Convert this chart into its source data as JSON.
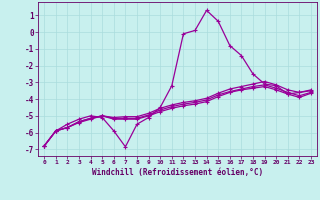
{
  "xlabel": "Windchill (Refroidissement éolien,°C)",
  "background_color": "#c8f0ee",
  "line_color": "#990099",
  "grid_color": "#aadddd",
  "axis_color": "#660066",
  "tick_label_color": "#660066",
  "xlabel_color": "#660066",
  "xlim": [
    -0.5,
    23.5
  ],
  "ylim": [
    -7.4,
    1.8
  ],
  "xticks": [
    0,
    1,
    2,
    3,
    4,
    5,
    6,
    7,
    8,
    9,
    10,
    11,
    12,
    13,
    14,
    15,
    16,
    17,
    18,
    19,
    20,
    21,
    22,
    23
  ],
  "yticks": [
    -7,
    -6,
    -5,
    -4,
    -3,
    -2,
    -1,
    0,
    1
  ],
  "y_main": [
    -6.8,
    -5.9,
    -5.5,
    -5.2,
    -5.0,
    -5.1,
    -5.9,
    -6.85,
    -5.5,
    -5.1,
    -4.5,
    -3.2,
    -0.1,
    0.1,
    1.3,
    0.65,
    -0.8,
    -1.4,
    -2.5,
    -3.1,
    -3.2,
    -3.7,
    -3.6,
    -3.5
  ],
  "y_line1": [
    -6.8,
    -5.9,
    -5.7,
    -5.35,
    -5.15,
    -5.0,
    -5.1,
    -5.05,
    -5.05,
    -4.85,
    -4.55,
    -4.35,
    -4.2,
    -4.1,
    -3.95,
    -3.65,
    -3.4,
    -3.25,
    -3.1,
    -2.95,
    -3.15,
    -3.45,
    -3.6,
    -3.45
  ],
  "y_line2": [
    -6.8,
    -5.9,
    -5.7,
    -5.35,
    -5.15,
    -5.0,
    -5.15,
    -5.15,
    -5.15,
    -4.95,
    -4.65,
    -4.45,
    -4.3,
    -4.2,
    -4.05,
    -3.75,
    -3.55,
    -3.4,
    -3.25,
    -3.15,
    -3.35,
    -3.6,
    -3.8,
    -3.6
  ],
  "y_line3": [
    -6.8,
    -5.9,
    -5.7,
    -5.4,
    -5.2,
    -5.0,
    -5.2,
    -5.2,
    -5.2,
    -5.0,
    -4.75,
    -4.55,
    -4.4,
    -4.3,
    -4.15,
    -3.85,
    -3.6,
    -3.45,
    -3.35,
    -3.25,
    -3.45,
    -3.7,
    -3.9,
    -3.65
  ],
  "marker": "+",
  "markersize": 3.5,
  "linewidth": 0.9
}
